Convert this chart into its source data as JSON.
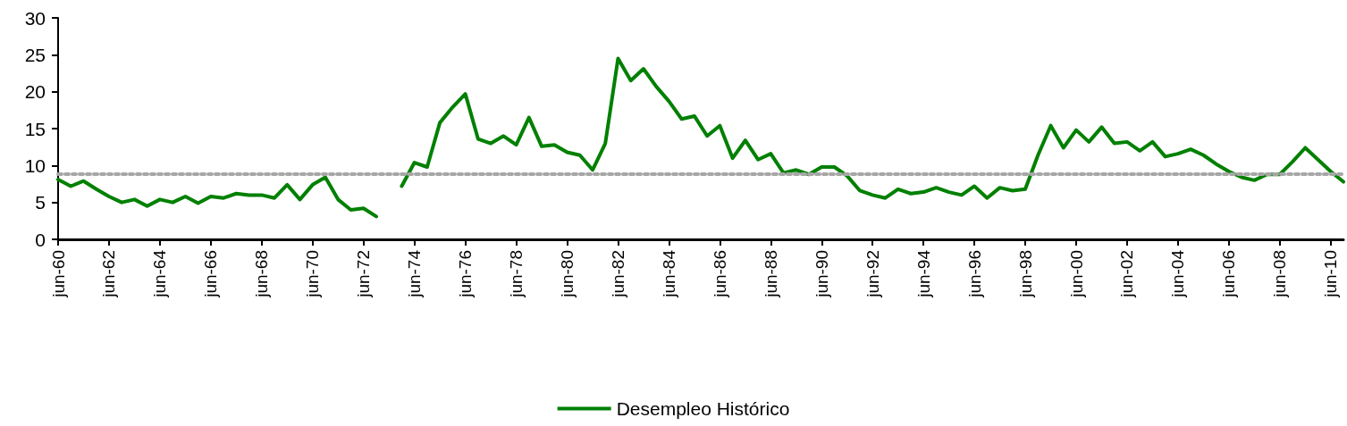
{
  "chart_data": {
    "type": "line",
    "categories": [
      "jun-60",
      null,
      null,
      null,
      "jun-62",
      null,
      null,
      null,
      "jun-64",
      null,
      null,
      null,
      "jun-66",
      null,
      null,
      null,
      "jun-68",
      null,
      null,
      null,
      "jun-70",
      null,
      null,
      null,
      "jun-72",
      null,
      null,
      null,
      "jun-74",
      null,
      null,
      null,
      "jun-76",
      null,
      null,
      null,
      "jun-78",
      null,
      null,
      null,
      "jun-80",
      null,
      null,
      null,
      "jun-82",
      null,
      null,
      null,
      "jun-84",
      null,
      null,
      null,
      "jun-86",
      null,
      null,
      null,
      "jun-88",
      null,
      null,
      null,
      "jun-90",
      null,
      null,
      null,
      "jun-92",
      null,
      null,
      null,
      "jun-94",
      null,
      null,
      null,
      "jun-96",
      null,
      null,
      null,
      "jun-98",
      null,
      null,
      null,
      "jun-00",
      null,
      null,
      null,
      "jun-02",
      null,
      null,
      null,
      "jun-04",
      null,
      null,
      null,
      "jun-06",
      null,
      null,
      null,
      "jun-08",
      null,
      null,
      null,
      "jun-10",
      null
    ],
    "series": [
      {
        "name": "Desempleo Histórico",
        "color": "#008000",
        "values": [
          8.1,
          7.2,
          7.9,
          6.8,
          5.8,
          5.0,
          5.4,
          4.5,
          5.4,
          5.0,
          5.8,
          4.9,
          5.8,
          5.6,
          6.2,
          6.0,
          6.0,
          5.6,
          7.4,
          5.4,
          7.4,
          8.4,
          5.4,
          4.0,
          4.2,
          3.1,
          null,
          7.2,
          10.4,
          9.8,
          15.8,
          17.9,
          19.7,
          13.6,
          13.0,
          14.0,
          12.8,
          16.5,
          12.6,
          12.8,
          11.8,
          11.4,
          9.4,
          13.0,
          24.5,
          21.5,
          23.1,
          20.7,
          18.7,
          16.3,
          16.7,
          14.0,
          15.4,
          11.0,
          13.4,
          10.8,
          11.6,
          9.0,
          9.4,
          8.8,
          9.8,
          9.8,
          8.6,
          6.6,
          6.0,
          5.6,
          6.8,
          6.2,
          6.4,
          7.0,
          6.4,
          6.0,
          7.2,
          5.6,
          7.0,
          6.6,
          6.8,
          11.4,
          15.4,
          12.4,
          14.8,
          13.2,
          15.2,
          13.0,
          13.2,
          12.0,
          13.2,
          11.2,
          11.6,
          12.2,
          11.4,
          10.2,
          9.2,
          8.4,
          8.0,
          8.8,
          8.8,
          10.5,
          12.4,
          10.8,
          9.2,
          7.8
        ]
      }
    ],
    "ylim": [
      0,
      30
    ],
    "yticks": [
      0,
      5,
      10,
      15,
      20,
      25,
      30
    ],
    "ref_lines": [
      {
        "axis": "y",
        "value": 8.9,
        "color": "#a6a6a6",
        "line_style": "dotted"
      }
    ],
    "grid": false,
    "legend": "bottom",
    "marker": "none",
    "line_style": "solid"
  }
}
